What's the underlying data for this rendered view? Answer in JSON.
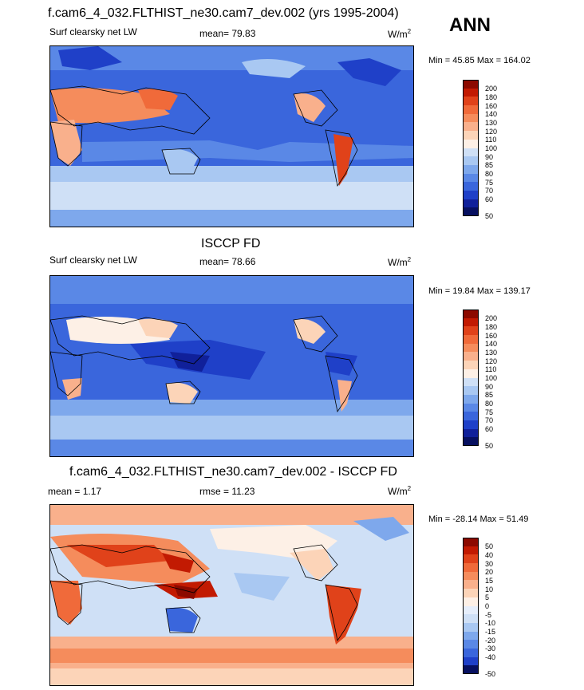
{
  "season": "ANN",
  "panels": [
    {
      "title": "f.cam6_4_032.FLTHIST_ne30.cam7_dev.002 (yrs 1995-2004)",
      "variable": "Surf clearsky net LW",
      "stat": "mean=  79.83",
      "units_base": "W/m",
      "units_exp": "2",
      "minmax": "Min =  45.85 Max = 164.02",
      "colorbar_labels": [
        "200",
        "180",
        "160",
        "140",
        "130",
        "120",
        "110",
        "100",
        "90",
        "85",
        "80",
        "75",
        "70",
        "60",
        "50"
      ]
    },
    {
      "title": "ISCCP FD",
      "variable": "Surf clearsky net LW",
      "stat": "mean=  78.66",
      "units_base": "W/m",
      "units_exp": "2",
      "minmax": "Min =  19.84 Max = 139.17",
      "colorbar_labels": [
        "200",
        "180",
        "160",
        "140",
        "130",
        "120",
        "110",
        "100",
        "90",
        "85",
        "80",
        "75",
        "70",
        "60",
        "50"
      ]
    },
    {
      "title": "f.cam6_4_032.FLTHIST_ne30.cam7_dev.002 - ISCCP FD",
      "variable": "mean =   1.17",
      "stat": "rmse =  11.23",
      "units_base": "W/m",
      "units_exp": "2",
      "minmax": "Min = -28.14 Max =  51.49",
      "colorbar_labels": [
        "50",
        "40",
        "30",
        "20",
        "15",
        "10",
        "5",
        "0",
        "-5",
        "-10",
        "-15",
        "-20",
        "-30",
        "-40",
        "-50"
      ]
    }
  ],
  "colors": {
    "abs_scale": [
      "#8c0a00",
      "#c21a02",
      "#e0421a",
      "#f06a3a",
      "#f58c5c",
      "#f9b08c",
      "#fcd4b8",
      "#fdf0e6",
      "#cfe0f6",
      "#a9c8f2",
      "#7ea8ec",
      "#5a88e6",
      "#3a66dc",
      "#1f40c8",
      "#10209a",
      "#071060"
    ],
    "diff_scale": [
      "#8c0a00",
      "#c21a02",
      "#e0421a",
      "#f06a3a",
      "#f58c5c",
      "#f9b08c",
      "#fcd4b8",
      "#fdf0e6",
      "#e6eefb",
      "#cfe0f6",
      "#a9c8f2",
      "#7ea8ec",
      "#5a88e6",
      "#3a66dc",
      "#1f40c8",
      "#071060"
    ]
  }
}
